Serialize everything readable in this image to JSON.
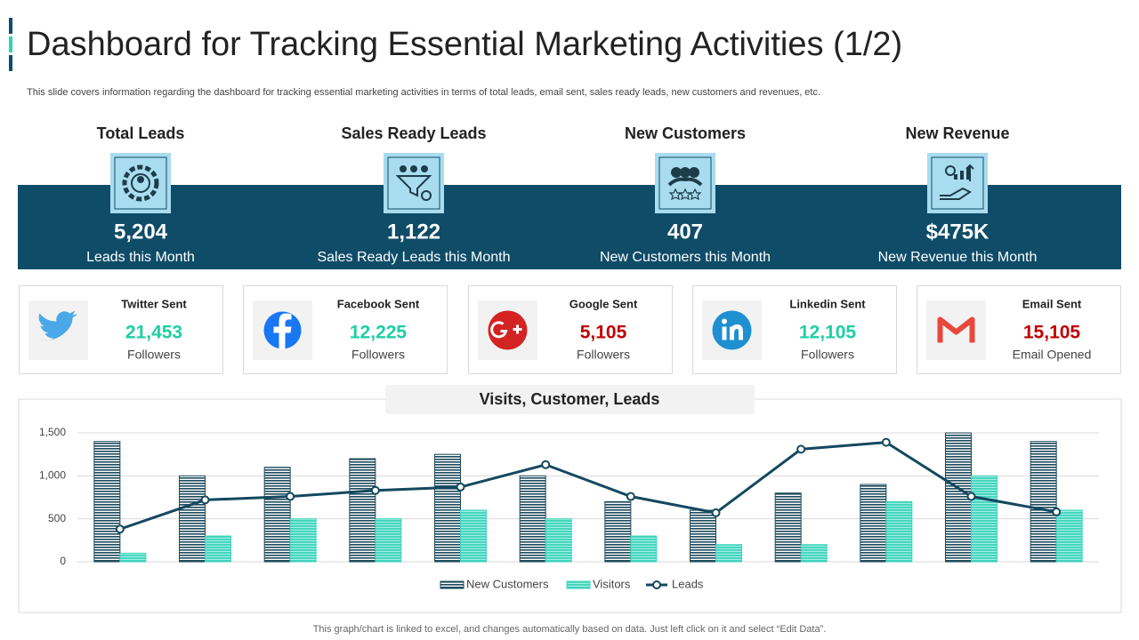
{
  "header": {
    "title": "Dashboard for Tracking Essential Marketing Activities (1/2)",
    "subtitle": "This slide covers information regarding the dashboard for tracking essential marketing activities in terms of total leads, email sent, sales ready leads, new customers and revenues, etc."
  },
  "kpis": [
    {
      "heading": "Total Leads",
      "value": "5,204",
      "label": "Leads this Month"
    },
    {
      "heading": "Sales Ready Leads",
      "value": "1,122",
      "label": "Sales Ready Leads this Month"
    },
    {
      "heading": "New Customers",
      "value": "407",
      "label": "New Customers this Month"
    },
    {
      "heading": "New Revenue",
      "value": "$475K",
      "label": "New Revenue this Month"
    }
  ],
  "social": [
    {
      "title": "Twitter Sent",
      "value": "21,453",
      "label": "Followers",
      "color": "#1fcea5"
    },
    {
      "title": "Facebook Sent",
      "value": "12,225",
      "label": "Followers",
      "color": "#1fcea5"
    },
    {
      "title": "Google Sent",
      "value": "5,105",
      "label": "Followers",
      "color": "#c00000"
    },
    {
      "title": "Linkedin Sent",
      "value": "12,105",
      "label": "Followers",
      "color": "#1fcea5"
    },
    {
      "title": "Email Sent",
      "value": "15,105",
      "label": "Email Opened",
      "color": "#c00000"
    }
  ],
  "chart_data": {
    "type": "combo",
    "title": "Visits, Customer, Leads",
    "categories": [
      null,
      null,
      null,
      null,
      null,
      null,
      null,
      null,
      null,
      null,
      null,
      null
    ],
    "series": [
      {
        "name": "New Customers",
        "type": "bar",
        "color": "#1d4a5c",
        "values": [
          1400,
          1000,
          1100,
          1200,
          1250,
          1000,
          700,
          600,
          800,
          900,
          1500,
          1400
        ]
      },
      {
        "name": "Visitors",
        "type": "bar",
        "color": "#3fd3bc",
        "values": [
          100,
          300,
          500,
          500,
          600,
          500,
          300,
          200,
          200,
          700,
          1000,
          600
        ]
      },
      {
        "name": "Leads",
        "type": "line",
        "color": "#14485f",
        "values": [
          380,
          720,
          760,
          830,
          870,
          1130,
          760,
          570,
          1310,
          1390,
          760,
          580
        ]
      }
    ],
    "ylim": [
      0,
      1500
    ],
    "yticks": [
      0,
      500,
      {
        "value": 1000,
        "label": "1,000"
      },
      {
        "value": 1500,
        "label": "1,500"
      }
    ],
    "grid": true
  },
  "footnote": "This graph/chart is linked to excel, and changes automatically based on data. Just left click on it and select “Edit Data”."
}
